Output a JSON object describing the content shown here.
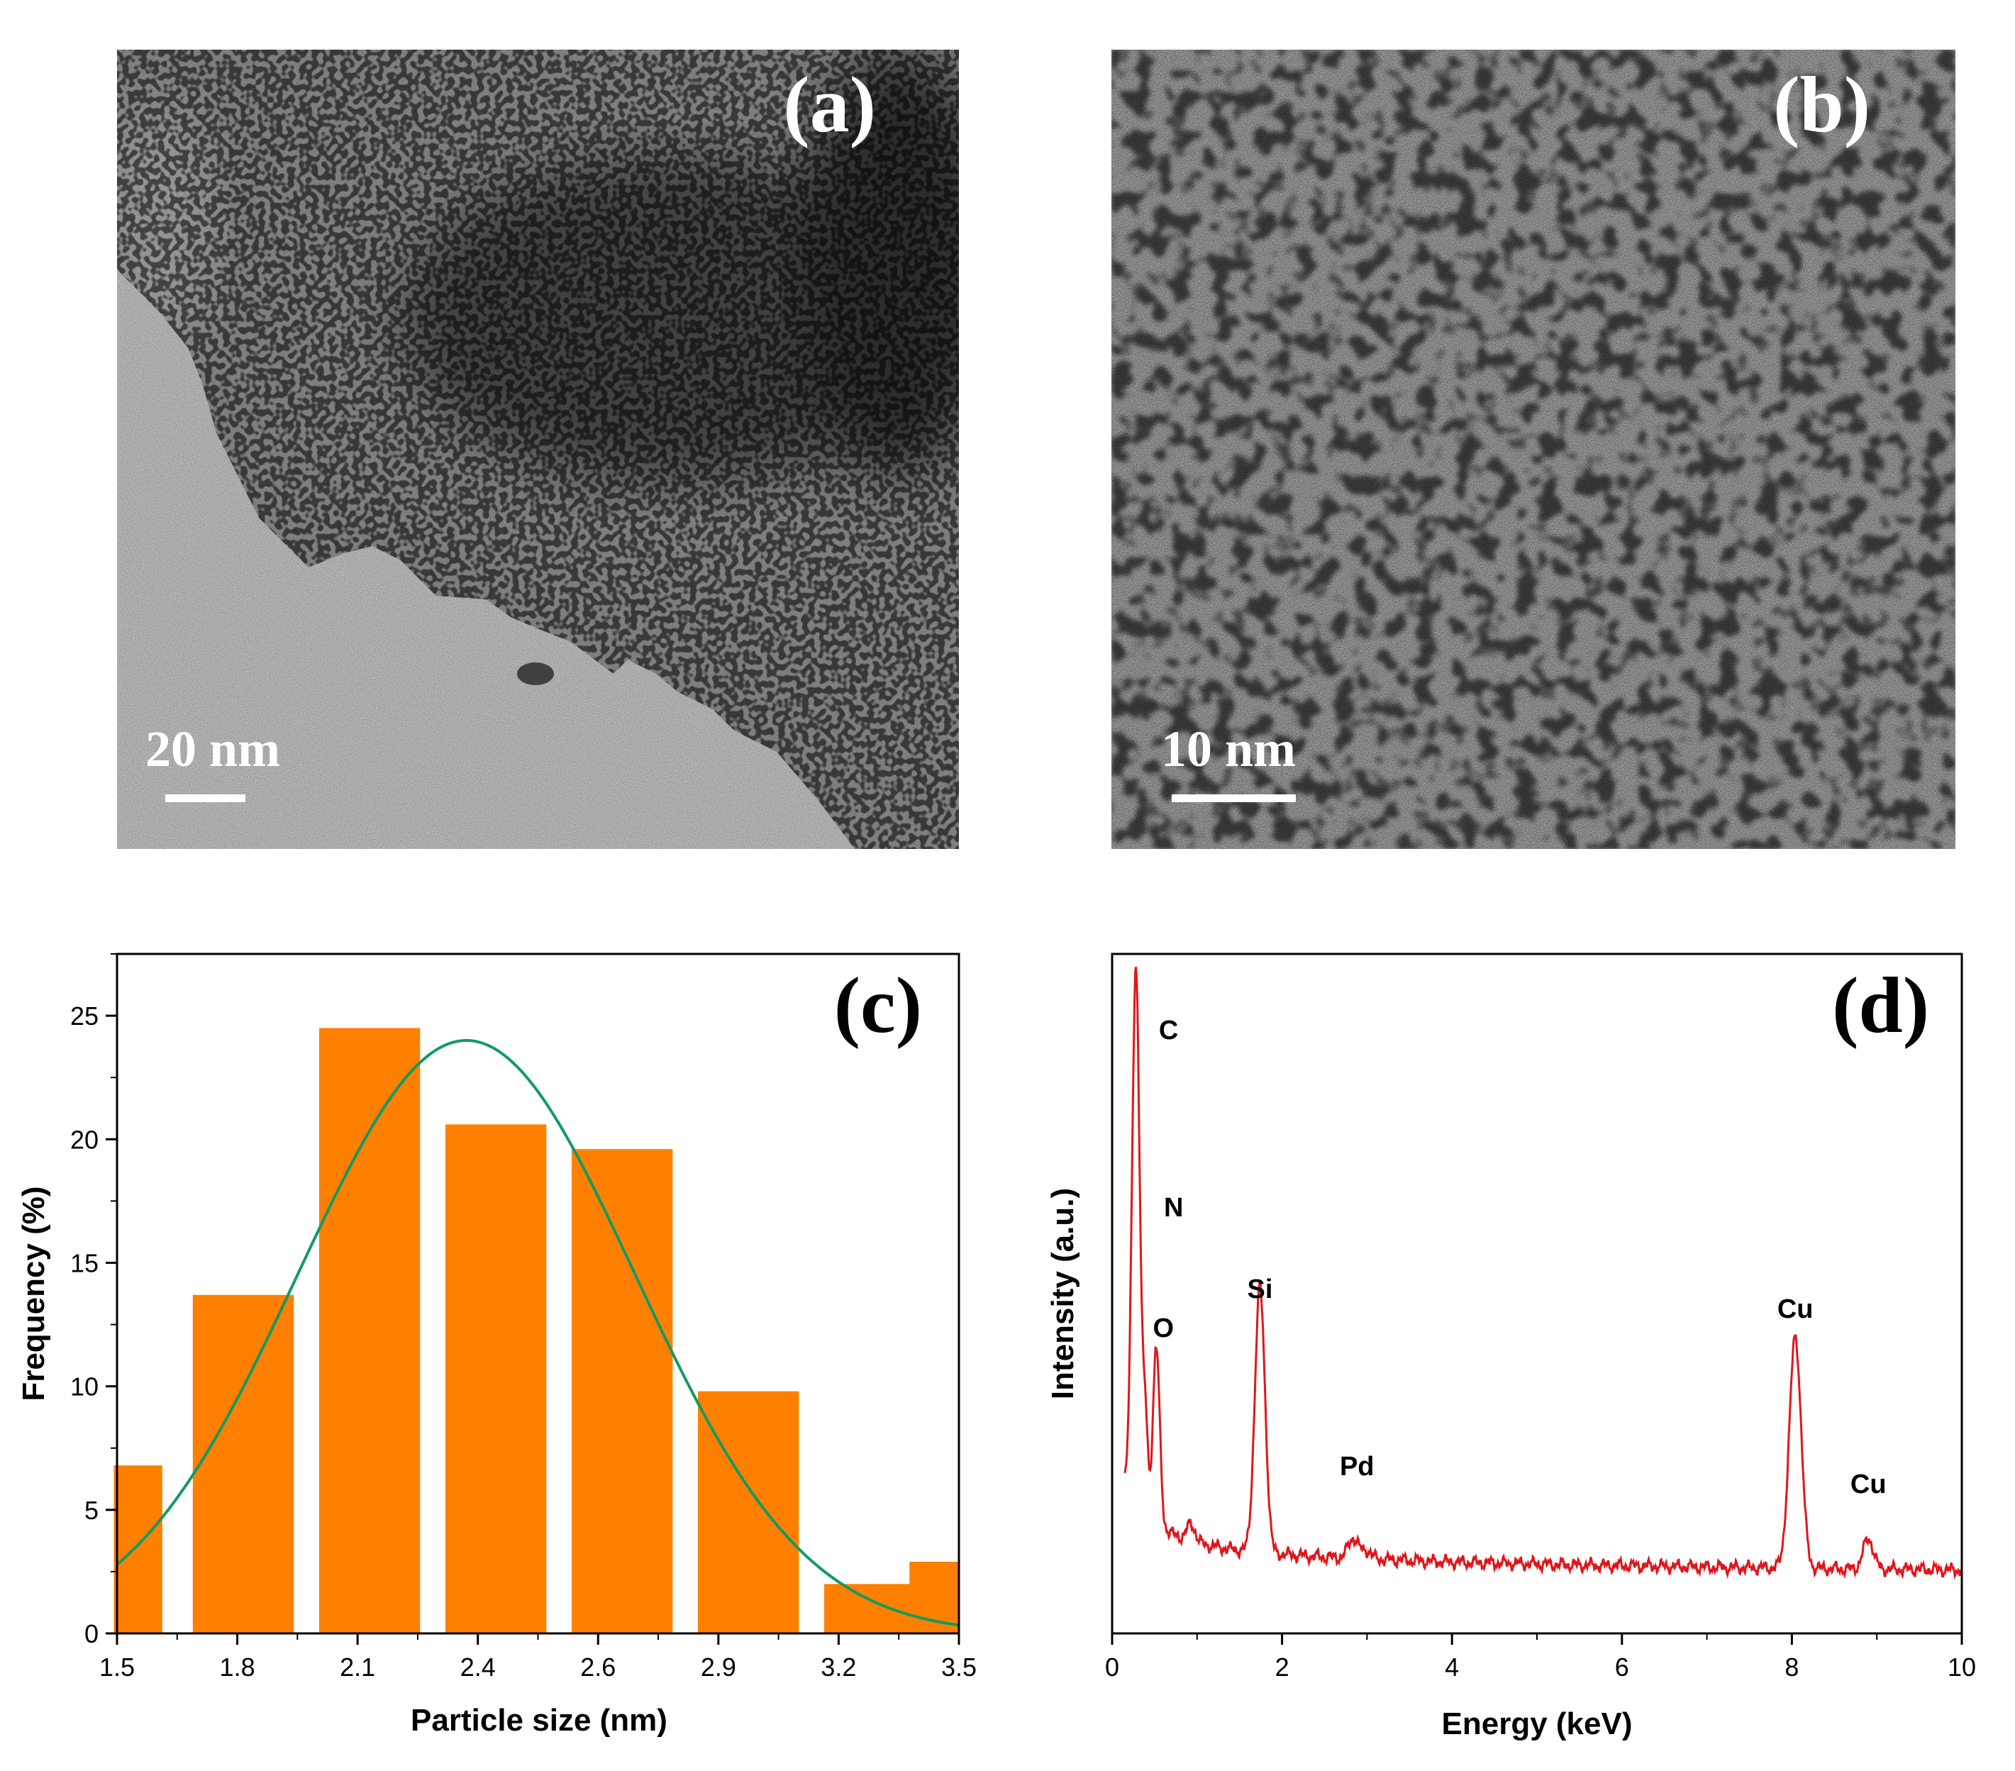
{
  "panels": {
    "a": {
      "label": "(a)",
      "scale_bar": "20 nm"
    },
    "b": {
      "label": "(b)",
      "scale_bar": "10 nm"
    },
    "c": {
      "label": "(c)"
    },
    "d": {
      "label": "(d)"
    }
  },
  "colors": {
    "bar": "#ff8000",
    "fit": "#129a63",
    "spectrum": "#e0161b"
  },
  "chart_data": [
    {
      "type": "bar",
      "panel": "(c)",
      "xlabel": "Particle size (nm)",
      "ylabel": "Frequency (%)",
      "xlim": [
        1.5,
        3.5
      ],
      "ylim": [
        0,
        27.5
      ],
      "xticks": [
        "1.5",
        "1.8",
        "2.1",
        "2.4",
        "2.6",
        "2.9",
        "3.2",
        "3.5"
      ],
      "yticks": [
        "0",
        "5",
        "10",
        "15",
        "20",
        "25"
      ],
      "bars": [
        {
          "center": 1.55,
          "width": 0.115,
          "value": 6.8
        },
        {
          "center": 1.8,
          "width": 0.24,
          "value": 13.7
        },
        {
          "center": 2.1,
          "width": 0.24,
          "value": 24.5
        },
        {
          "center": 2.4,
          "width": 0.24,
          "value": 20.6
        },
        {
          "center": 2.7,
          "width": 0.24,
          "value": 19.6
        },
        {
          "center": 3.0,
          "width": 0.24,
          "value": 9.8
        },
        {
          "center": 3.3,
          "width": 0.24,
          "value": 2.0
        },
        {
          "center": 3.44,
          "width": 0.115,
          "value": 2.9
        }
      ],
      "fit": {
        "type": "gaussian",
        "peak_x": 2.33,
        "peak_y": 24.0,
        "sigma": 0.4
      }
    },
    {
      "type": "line",
      "panel": "(d)",
      "xlabel": "Energy (keV)",
      "ylabel": "Intensity (a.u.)",
      "xlim": [
        0,
        10
      ],
      "xticks": [
        "0",
        "2",
        "4",
        "6",
        "8",
        "10"
      ],
      "peaks": [
        {
          "element": "C",
          "energy": 0.28
        },
        {
          "element": "N",
          "energy": 0.39
        },
        {
          "element": "O",
          "energy": 0.52
        },
        {
          "element": "Si",
          "energy": 1.74
        },
        {
          "element": "Pd",
          "energy": 2.84
        },
        {
          "element": "Cu",
          "energy": 8.04
        },
        {
          "element": "Cu",
          "energy": 8.9
        }
      ]
    }
  ]
}
